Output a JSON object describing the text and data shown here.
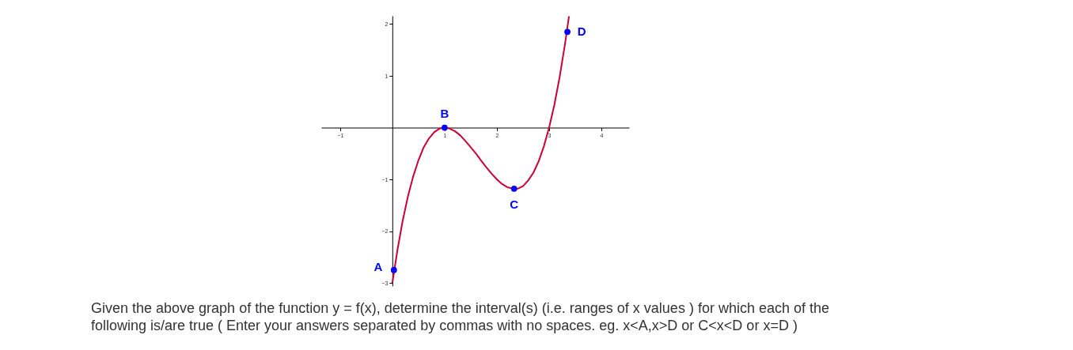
{
  "chart_data": {
    "type": "line",
    "xlim": [
      -1.36,
      4.53
    ],
    "ylim": [
      -3.06,
      2.16
    ],
    "xticks": [
      -1,
      1,
      2,
      3,
      4
    ],
    "yticks": [
      -3,
      -2,
      -1,
      1,
      2
    ],
    "grid": false,
    "series": [
      {
        "color": "#cc0033",
        "x": [
          0,
          0.1,
          0.2,
          0.3,
          0.4,
          0.5,
          0.6,
          0.7,
          0.8,
          0.9,
          1.0,
          1.1,
          1.2,
          1.3,
          1.4,
          1.5,
          1.6,
          1.7,
          1.8,
          1.9,
          2.0,
          2.1,
          2.2,
          2.3,
          2.4,
          2.5,
          2.6,
          2.7,
          2.8,
          2.9,
          3.0,
          3.1,
          3.2,
          3.3,
          3.38
        ],
        "values": [
          -3,
          -2.35,
          -1.79,
          -1.32,
          -0.94,
          -0.63,
          -0.38,
          -0.21,
          -0.09,
          -0.02,
          0,
          -0.02,
          -0.07,
          -0.15,
          -0.26,
          -0.38,
          -0.5,
          -0.64,
          -0.77,
          -0.89,
          -1,
          -1.09,
          -1.15,
          -1.18,
          -1.18,
          -1.13,
          -1.02,
          -0.87,
          -0.65,
          -0.36,
          0,
          0.44,
          0.97,
          1.59,
          2.15
        ]
      },
      {
        "type": "scatter",
        "color": "#0000ff",
        "marker": "circle",
        "x": [
          0.03,
          1,
          2.33,
          3.35
        ],
        "values": [
          -2.75,
          0,
          -1.18,
          1.85
        ]
      }
    ],
    "annotations": [
      {
        "text": "A",
        "x": 0.03,
        "y": -2.75
      },
      {
        "text": "B",
        "x": 1,
        "y": 0
      },
      {
        "text": "C",
        "x": 2.33,
        "y": -1.18
      },
      {
        "text": "D",
        "x": 3.35,
        "y": 1.85
      },
      "Given the above graph of the function y = f(x), determine the interval(s)  (i.e. ranges of x values ) for which each of the following is/are true ( Enter your answers separated by commas with no spaces. eg. x<A,x>D  or C<x<D or x=D  )"
    ]
  }
}
